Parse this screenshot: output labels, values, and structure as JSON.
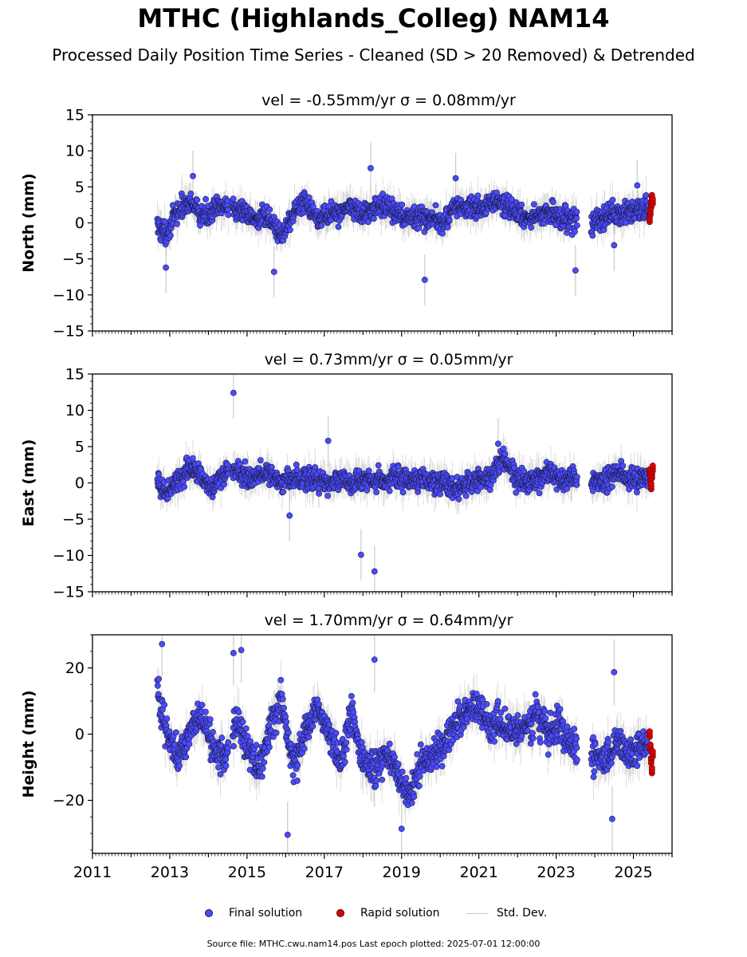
{
  "title": "MTHC (Highlands_Colleg) NAM14",
  "subtitle": "Processed Daily Position Time Series - Cleaned (SD > 20 Removed) & Detrended",
  "colors": {
    "final": "#4b4bff",
    "rapid": "#e00000",
    "stddev": "#b4b4b4",
    "edge": "#1a1a40"
  },
  "legend": {
    "final": "Final solution",
    "rapid": "Rapid solution",
    "stddev": "Std. Dev."
  },
  "source_note": "Source file: MTHC.cwu.nam14.pos  Last epoch plotted: 2025-07-01 12:00:00",
  "chart_data": [
    {
      "type": "scatter",
      "component": "north",
      "title": "vel = -0.55mm/yr   σ = 0.08mm/yr",
      "ylabel": "North (mm)",
      "xlim": [
        2011.0,
        2026.0
      ],
      "ylim": [
        -15,
        15
      ],
      "yticks": [
        -15,
        -10,
        -5,
        0,
        5,
        10,
        15
      ],
      "ytick_labels": [
        "−15",
        "−10",
        "−5",
        "0",
        "5",
        "10",
        "15"
      ],
      "series": [
        {
          "name": "Final solution",
          "x": [
            2012.7,
            2012.9,
            2013.2,
            2013.5,
            2013.8,
            2014.1,
            2014.4,
            2014.7,
            2015.0,
            2015.3,
            2015.6,
            2015.9,
            2016.2,
            2016.5,
            2016.8,
            2017.1,
            2017.4,
            2017.7,
            2018.0,
            2018.3,
            2018.6,
            2018.9,
            2019.2,
            2019.5,
            2019.8,
            2020.1,
            2020.4,
            2020.7,
            2021.0,
            2021.3,
            2021.6,
            2021.9,
            2022.2,
            2022.5,
            2022.8,
            2023.1,
            2023.4,
            2024.0,
            2024.3,
            2024.6,
            2024.9,
            2025.2
          ],
          "y": [
            -0.5,
            -1.5,
            1.5,
            3.0,
            1.0,
            1.5,
            2.5,
            2.0,
            1.0,
            0.5,
            0.5,
            -2.0,
            1.5,
            3.0,
            1.0,
            1.0,
            1.5,
            2.5,
            1.0,
            2.0,
            2.5,
            1.0,
            0.5,
            1.0,
            0.5,
            0.0,
            2.5,
            2.0,
            2.0,
            2.5,
            3.0,
            1.5,
            0.5,
            1.0,
            1.5,
            1.0,
            0.5,
            0.0,
            1.0,
            1.0,
            1.5,
            2.0
          ]
        },
        {
          "name": "Rapid solution",
          "x": [
            2025.42,
            2025.44,
            2025.46,
            2025.48,
            2025.5
          ],
          "y": [
            0.5,
            1.5,
            2.5,
            3.5,
            3.0
          ]
        }
      ],
      "outliers": [
        {
          "x": 2012.9,
          "y": -6.2
        },
        {
          "x": 2013.6,
          "y": 6.5
        },
        {
          "x": 2015.7,
          "y": -6.8
        },
        {
          "x": 2018.2,
          "y": 7.6
        },
        {
          "x": 2019.6,
          "y": -7.9
        },
        {
          "x": 2020.4,
          "y": 6.2
        },
        {
          "x": 2023.5,
          "y": -6.6
        },
        {
          "x": 2024.5,
          "y": -3.1
        },
        {
          "x": 2025.1,
          "y": 5.2
        }
      ]
    },
    {
      "type": "scatter",
      "component": "east",
      "title": "vel = 0.73mm/yr   σ = 0.05mm/yr",
      "ylabel": "East (mm)",
      "xlim": [
        2011.0,
        2026.0
      ],
      "ylim": [
        -15,
        15
      ],
      "yticks": [
        -15,
        -10,
        -5,
        0,
        5,
        10,
        15
      ],
      "ytick_labels": [
        "−15",
        "−10",
        "−5",
        "0",
        "5",
        "10",
        "15"
      ],
      "series": [
        {
          "name": "Final solution",
          "x": [
            2012.7,
            2012.9,
            2013.2,
            2013.5,
            2013.8,
            2014.1,
            2014.4,
            2014.7,
            2015.0,
            2015.3,
            2015.6,
            2015.9,
            2016.2,
            2016.5,
            2016.8,
            2017.1,
            2017.4,
            2017.7,
            2018.0,
            2018.3,
            2018.6,
            2018.9,
            2019.2,
            2019.5,
            2019.8,
            2020.1,
            2020.4,
            2020.7,
            2021.0,
            2021.3,
            2021.6,
            2021.9,
            2022.2,
            2022.5,
            2022.8,
            2023.1,
            2023.4,
            2024.0,
            2024.3,
            2024.6,
            2024.9,
            2025.2
          ],
          "y": [
            0.0,
            -1.5,
            0.5,
            2.0,
            1.0,
            -0.5,
            1.5,
            2.0,
            0.5,
            1.0,
            1.5,
            0.0,
            0.5,
            0.5,
            0.5,
            0.0,
            0.5,
            0.0,
            0.5,
            0.5,
            0.5,
            1.0,
            0.5,
            0.5,
            0.0,
            0.0,
            -1.0,
            0.0,
            0.5,
            0.5,
            3.5,
            1.0,
            0.0,
            0.5,
            1.5,
            0.5,
            0.5,
            0.0,
            0.5,
            1.5,
            0.5,
            0.5
          ]
        },
        {
          "name": "Rapid solution",
          "x": [
            2025.42,
            2025.44,
            2025.46,
            2025.48,
            2025.5
          ],
          "y": [
            1.5,
            0.5,
            -0.5,
            1.0,
            2.0
          ]
        }
      ],
      "outliers": [
        {
          "x": 2014.65,
          "y": 12.4
        },
        {
          "x": 2017.95,
          "y": -9.9
        },
        {
          "x": 2018.3,
          "y": -12.2
        },
        {
          "x": 2016.1,
          "y": -4.5
        },
        {
          "x": 2017.1,
          "y": 5.8
        },
        {
          "x": 2021.5,
          "y": 5.4
        }
      ]
    },
    {
      "type": "scatter",
      "component": "height",
      "title": "vel = 1.70mm/yr   σ = 0.64mm/yr",
      "ylabel": "Height (mm)",
      "xlim": [
        2011.0,
        2026.0
      ],
      "ylim": [
        -36,
        30
      ],
      "yticks": [
        -20,
        0,
        20
      ],
      "ytick_labels": [
        "−20",
        "0",
        "20"
      ],
      "xticks": [
        2011,
        2013,
        2015,
        2017,
        2019,
        2021,
        2023,
        2025
      ],
      "xtick_labels": [
        "2011",
        "2013",
        "2015",
        "2017",
        "2019",
        "2021",
        "2023",
        "2025"
      ],
      "series": [
        {
          "name": "Final solution",
          "x": [
            2012.7,
            2012.9,
            2013.2,
            2013.5,
            2013.8,
            2014.1,
            2014.4,
            2014.7,
            2015.0,
            2015.3,
            2015.6,
            2015.9,
            2016.2,
            2016.5,
            2016.8,
            2017.1,
            2017.4,
            2017.7,
            2018.0,
            2018.3,
            2018.6,
            2018.9,
            2019.2,
            2019.5,
            2019.8,
            2020.1,
            2020.4,
            2020.7,
            2021.0,
            2021.3,
            2021.6,
            2021.9,
            2022.2,
            2022.5,
            2022.8,
            2023.1,
            2023.4,
            2024.0,
            2024.3,
            2024.6,
            2024.9,
            2025.2
          ],
          "y": [
            12.0,
            2.0,
            -6.0,
            0.0,
            6.0,
            -4.0,
            -8.0,
            4.0,
            -4.0,
            -10.0,
            2.0,
            10.0,
            -10.0,
            0.0,
            8.0,
            2.0,
            -8.0,
            6.0,
            -8.0,
            -12.0,
            -6.0,
            -12.0,
            -18.0,
            -10.0,
            -6.0,
            -4.0,
            4.0,
            6.0,
            8.0,
            2.0,
            4.0,
            0.0,
            2.0,
            6.0,
            0.0,
            2.0,
            -4.0,
            -6.0,
            -8.0,
            -2.0,
            -6.0,
            -4.0
          ]
        },
        {
          "name": "Rapid solution",
          "x": [
            2025.42,
            2025.44,
            2025.46,
            2025.48,
            2025.5
          ],
          "y": [
            0.0,
            -4.0,
            -8.0,
            -11.0,
            -6.0
          ]
        }
      ],
      "outliers": [
        {
          "x": 2012.8,
          "y": 27.2
        },
        {
          "x": 2014.65,
          "y": 24.5
        },
        {
          "x": 2014.85,
          "y": 25.4
        },
        {
          "x": 2016.05,
          "y": -30.4
        },
        {
          "x": 2018.3,
          "y": 22.5
        },
        {
          "x": 2019.0,
          "y": -28.6
        },
        {
          "x": 2024.5,
          "y": 18.7
        },
        {
          "x": 2024.45,
          "y": -25.6
        }
      ]
    }
  ]
}
